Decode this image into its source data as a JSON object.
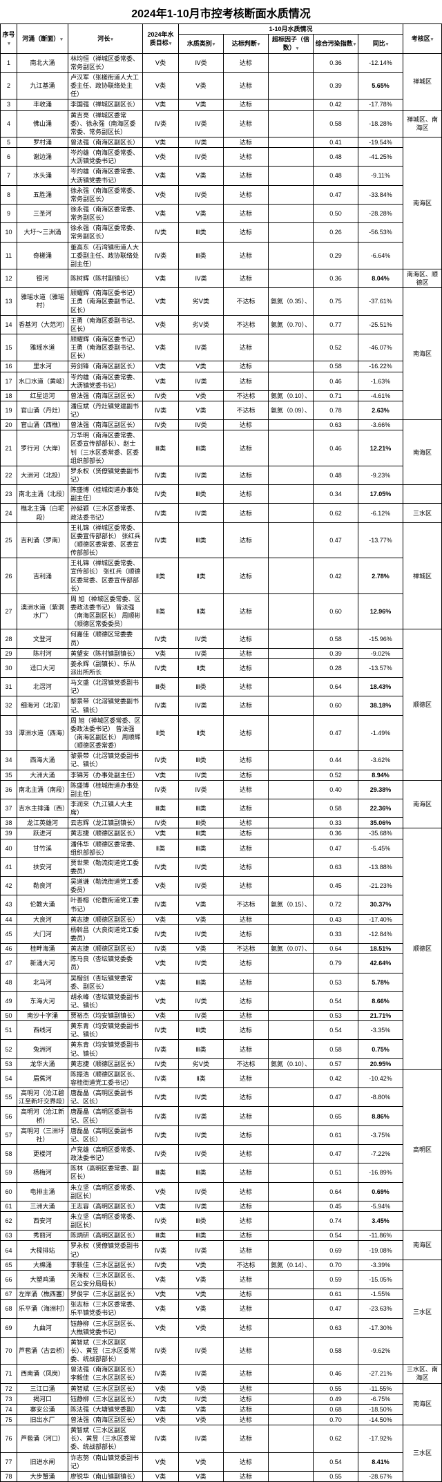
{
  "title": "2024年1-10月市控考核断面水质情况",
  "headers": {
    "no": "序号",
    "river": "河涌（断面）",
    "chief": "河长",
    "target": "2024年水质目标",
    "group": "1-10月水质情况",
    "cat": "水质类别",
    "reach": "达标判断",
    "exceed": "超标因子（倍数）",
    "index": "综合污染指数",
    "yoy": "同比",
    "zone": "考核区"
  },
  "rows": [
    {
      "no": "1",
      "river": "南北大涌",
      "chief": "林均恒（禅城区委常委、常务副区长）",
      "target": "Ⅴ类",
      "cat": "Ⅳ类",
      "reach": "达标",
      "exceed": "",
      "index": "0.36",
      "yoy": "-12.14%",
      "zone": "禅城区",
      "zspan": 3,
      "yb": false
    },
    {
      "no": "2",
      "river": "九江基涌",
      "chief": "卢汉军（张槎街道人大工委主任、政协联络处主任）",
      "target": "Ⅴ类",
      "cat": "Ⅴ类",
      "reach": "达标",
      "exceed": "",
      "index": "0.39",
      "yoy": "5.65%",
      "yb": true
    },
    {
      "no": "3",
      "river": "丰收涌",
      "chief": "李国强（禅城区副区长）",
      "target": "Ⅴ类",
      "cat": "Ⅴ类",
      "reach": "达标",
      "exceed": "",
      "index": "0.42",
      "yoy": "-17.78%",
      "yb": false
    },
    {
      "no": "4",
      "river": "佛山涌",
      "chief": "黄吉亮（禅城区委常委）、徐永强（南海区委常委、常务副区长）",
      "target": "Ⅳ类",
      "cat": "Ⅳ类",
      "reach": "达标",
      "exceed": "",
      "index": "0.58",
      "yoy": "-18.28%",
      "zone": "禅城区、南海区",
      "zspan": 1,
      "yb": false
    },
    {
      "no": "5",
      "river": "罗村涌",
      "chief": "曾法强（南海区副区长）",
      "target": "Ⅴ类",
      "cat": "Ⅳ类",
      "reach": "达标",
      "exceed": "",
      "index": "0.41",
      "yoy": "-19.54%",
      "zone": "南海区",
      "zspan": 7,
      "yb": false
    },
    {
      "no": "6",
      "river": "谢边涌",
      "chief": "岑灼雄（南海区委常委、大沥镇党委书记）",
      "target": "Ⅴ类",
      "cat": "Ⅳ类",
      "reach": "达标",
      "exceed": "",
      "index": "0.48",
      "yoy": "-41.25%",
      "yb": false
    },
    {
      "no": "7",
      "river": "水头涌",
      "chief": "岑灼雄（南海区委常委、大沥镇党委书记）",
      "target": "Ⅴ类",
      "cat": "Ⅴ类",
      "reach": "达标",
      "exceed": "",
      "index": "0.48",
      "yoy": "-9.11%",
      "yb": false
    },
    {
      "no": "8",
      "river": "五胜涌",
      "chief": "徐永强（南海区委常委、常务副区长）",
      "target": "Ⅴ类",
      "cat": "Ⅳ类",
      "reach": "达标",
      "exceed": "",
      "index": "0.47",
      "yoy": "-33.84%",
      "yb": false
    },
    {
      "no": "9",
      "river": "三圣河",
      "chief": "徐永强（南海区委常委、常务副区长）",
      "target": "Ⅴ类",
      "cat": "Ⅴ类",
      "reach": "达标",
      "exceed": "",
      "index": "0.50",
      "yoy": "-28.28%",
      "yb": false
    },
    {
      "no": "10",
      "river": "大圩～三洲涌",
      "chief": "徐永强（南海区委常委、常务副区长）",
      "target": "Ⅳ类",
      "cat": "Ⅲ类",
      "reach": "达标",
      "exceed": "",
      "index": "0.26",
      "yoy": "-56.53%",
      "yb": false
    },
    {
      "no": "11",
      "river": "奇槎涌",
      "chief": "董高东（石湾镇街道人大工委副主任、政协联络处副主任）",
      "target": "Ⅳ类",
      "cat": "Ⅲ类",
      "reach": "达标",
      "exceed": "",
      "index": "0.29",
      "yoy": "-6.64%",
      "yb": false
    },
    {
      "no": "12",
      "river": "银河",
      "chief": "陈树辉（陈村副镇长）",
      "target": "Ⅴ类",
      "cat": "Ⅳ类",
      "reach": "达标",
      "exceed": "",
      "index": "0.36",
      "yoy": "8.04%",
      "zone": "南海区、顺德区",
      "zspan": 1,
      "yb": true
    },
    {
      "no": "13",
      "river": "雅瑶水道（雅瑶村）",
      "chief": "顾耀辉（南海区委书记）\n王勇（南海区委副书记、区长）",
      "target": "Ⅴ类",
      "cat": "劣Ⅴ类",
      "reach": "不达标",
      "exceed": "氨氮（0.35）、",
      "index": "0.75",
      "yoy": "-37.61%",
      "zone": "南海区",
      "zspan": 7,
      "yb": false
    },
    {
      "no": "14",
      "river": "香基河（大范河）",
      "chief": "王勇（南海区委副书记、区长）",
      "target": "Ⅴ类",
      "cat": "劣Ⅴ类",
      "reach": "不达标",
      "exceed": "氨氮（0.70）、",
      "index": "0.77",
      "yoy": "-25.51%",
      "yb": false
    },
    {
      "no": "15",
      "river": "雅瑶水道",
      "chief": "顾耀辉（南海区委书记）\n王勇（南海区委副书记、区长）",
      "target": "Ⅴ类",
      "cat": "Ⅳ类",
      "reach": "达标",
      "exceed": "",
      "index": "0.52",
      "yoy": "-46.07%",
      "yb": false
    },
    {
      "no": "16",
      "river": "里水河",
      "chief": "劳剑锋（南海区副区长）",
      "target": "Ⅴ类",
      "cat": "Ⅴ类",
      "reach": "达标",
      "exceed": "",
      "index": "0.58",
      "yoy": "-16.22%",
      "yb": false
    },
    {
      "no": "17",
      "river": "水口水道（黄岐）",
      "chief": "岑灼雄（南海区委常委、大沥镇党委书记）",
      "target": "Ⅴ类",
      "cat": "Ⅳ类",
      "reach": "达标",
      "exceed": "",
      "index": "0.46",
      "yoy": "-1.63%",
      "yb": false
    },
    {
      "no": "18",
      "river": "红星运河",
      "chief": "曾法强（南海区副区长）",
      "target": "Ⅳ类",
      "cat": "Ⅴ类",
      "reach": "不达标",
      "exceed": "氨氮（0.10）、",
      "index": "0.71",
      "yoy": "-4.61%",
      "yb": false
    },
    {
      "no": "19",
      "river": "官山涌（丹灶）",
      "chief": "潘应斌（丹灶镇党建副书记）",
      "target": "Ⅳ类",
      "cat": "Ⅴ类",
      "reach": "不达标",
      "exceed": "氨氮（0.09）、",
      "index": "0.78",
      "yoy": "2.63%",
      "yb": true
    },
    {
      "no": "20",
      "river": "官山涌（西樵）",
      "chief": "曾法强（南海区副区长）",
      "target": "Ⅳ类",
      "cat": "Ⅳ类",
      "reach": "达标",
      "exceed": "",
      "index": "0.63",
      "yoy": "-3.66%",
      "zone": "南海区",
      "zspan": 3,
      "yb": false
    },
    {
      "no": "21",
      "river": "罗行河（大岸）",
      "chief": "万华明（南海区委常委、区委宣传部部长）、赵士钊（三水区委常委、区委组织部部长）",
      "target": "Ⅲ类",
      "cat": "Ⅲ类",
      "reach": "达标",
      "exceed": "",
      "index": "0.46",
      "yoy": "12.21%",
      "yb": true
    },
    {
      "no": "22",
      "river": "大洲河（北投）",
      "chief": "罗永权（贤僚镇党委副书记）",
      "target": "Ⅳ类",
      "cat": "Ⅳ类",
      "reach": "达标",
      "exceed": "",
      "index": "0.48",
      "yoy": "-9.23%",
      "yb": false
    },
    {
      "no": "23",
      "river": "南北主涌（北段）",
      "chief": "陈盛博（桂城街道办事处副主任）",
      "target": "Ⅳ类",
      "cat": "Ⅲ类",
      "reach": "达标",
      "exceed": "",
      "index": "0.34",
      "yoy": "17.05%",
      "zone": "",
      "zspan": 1,
      "yb": true
    },
    {
      "no": "24",
      "river": "樵北主涌（白坭段）",
      "chief": "孙延颖（三水区委常委、政法委书记）",
      "target": "Ⅳ类",
      "cat": "Ⅳ类",
      "reach": "达标",
      "exceed": "",
      "index": "0.62",
      "yoy": "-6.12%",
      "zone": "三水区",
      "zspan": 1,
      "yb": false
    },
    {
      "no": "25",
      "river": "吉利涌（罗南）",
      "chief": "王礼锦（禅城区委常委、区委宣传部部长）\n张红兵（顺德区委常委、区委宣传部部长）",
      "target": "Ⅳ类",
      "cat": "Ⅲ类",
      "reach": "达标",
      "exceed": "",
      "index": "0.47",
      "yoy": "-13.77%",
      "zone": "禅城区",
      "zspan": 3,
      "yb": false
    },
    {
      "no": "26",
      "river": "吉利涌",
      "chief": "王礼锦（禅城区委常委、宣传部长）\n张红兵（顺德区委常委、区委宣传部部长）",
      "target": "Ⅱ类",
      "cat": "Ⅱ类",
      "reach": "达标",
      "exceed": "",
      "index": "0.42",
      "yoy": "2.78%",
      "yb": true
    },
    {
      "no": "27",
      "river": "澳洲水道（紫洞水厂）",
      "chief": "周 旭（禅城区委常委、区委政法委书记）\n曾法强（南海区副区长）\n周顺彬（顺德区常委委员）",
      "target": "Ⅱ类",
      "cat": "Ⅱ类",
      "reach": "达标",
      "exceed": "",
      "index": "0.60",
      "yoy": "12.96%",
      "yb": true
    },
    {
      "no": "28",
      "river": "文登河",
      "chief": "何嘉佳（顺德区常委委员）",
      "target": "Ⅳ类",
      "cat": "Ⅳ类",
      "reach": "达标",
      "exceed": "",
      "index": "0.58",
      "yoy": "-15.96%",
      "zone": "顺德区",
      "zspan": 8,
      "yb": false
    },
    {
      "no": "29",
      "river": "陈村河",
      "chief": "黄望安（陈村镇副镇长）",
      "target": "Ⅴ类",
      "cat": "Ⅳ类",
      "reach": "达标",
      "exceed": "",
      "index": "0.39",
      "yoy": "-9.02%",
      "yb": false
    },
    {
      "no": "30",
      "river": "迳口大河",
      "chief": "姜永辉（副镇长）、乐从派出所所长",
      "target": "Ⅳ类",
      "cat": "Ⅱ类",
      "reach": "达标",
      "exceed": "",
      "index": "0.28",
      "yoy": "-13.57%",
      "yb": false
    },
    {
      "no": "31",
      "river": "北滘河",
      "chief": "马文盛（北滘镇党委副书记）",
      "target": "Ⅲ类",
      "cat": "Ⅲ类",
      "reach": "达标",
      "exceed": "",
      "index": "0.64",
      "yoy": "18.43%",
      "yb": true
    },
    {
      "no": "32",
      "river": "细海河（北滘）",
      "chief": "黎景带（北滘镇党委副书记、镇长）",
      "target": "Ⅳ类",
      "cat": "Ⅳ类",
      "reach": "达标",
      "exceed": "",
      "index": "0.60",
      "yoy": "38.18%",
      "yb": true
    },
    {
      "no": "33",
      "river": "潭洲水道（西海）",
      "chief": "周 旭（禅城区委常委、区委政法委书记）\n曾法强（南海区副区长）\n周顺辉（顺德区委常委）",
      "target": "Ⅱ类",
      "cat": "Ⅱ类",
      "reach": "达标",
      "exceed": "",
      "index": "0.47",
      "yoy": "-1.49%",
      "yb": false
    },
    {
      "no": "34",
      "river": "西海大涌",
      "chief": "黎景带（北滘镇党委副书记、镇长）",
      "target": "Ⅳ类",
      "cat": "Ⅲ类",
      "reach": "达标",
      "exceed": "",
      "index": "0.44",
      "yoy": "-3.62%",
      "yb": false
    },
    {
      "no": "35",
      "river": "大洲大涌",
      "chief": "李锦芳（办事处副主任）",
      "target": "Ⅴ类",
      "cat": "Ⅳ类",
      "reach": "达标",
      "exceed": "",
      "index": "0.52",
      "yoy": "8.94%",
      "yb": true
    },
    {
      "no": "36",
      "river": "南北主涌（南段）",
      "chief": "陈盛博（桂城街道办事处副主任）",
      "target": "Ⅳ类",
      "cat": "Ⅳ类",
      "reach": "达标",
      "exceed": "",
      "index": "0.40",
      "yoy": "29.38%",
      "zone": "南海区",
      "zspan": 3,
      "yb": true
    },
    {
      "no": "37",
      "river": "吉水主排涌（西）",
      "chief": "李润来（九江镇人大主席）",
      "target": "Ⅲ类",
      "cat": "Ⅲ类",
      "reach": "达标",
      "exceed": "",
      "index": "0.58",
      "yoy": "22.36%",
      "yb": true
    },
    {
      "no": "38",
      "river": "龙江英雄河",
      "chief": "云志辉（龙江镇副镇长）",
      "target": "Ⅳ类",
      "cat": "Ⅲ类",
      "reach": "达标",
      "exceed": "",
      "index": "0.33",
      "yoy": "35.06%",
      "yb": true
    },
    {
      "no": "39",
      "river": "跃进河",
      "chief": "黄志捷（顺德区副区长）",
      "target": "Ⅴ类",
      "cat": "Ⅲ类",
      "reach": "达标",
      "exceed": "",
      "index": "0.36",
      "yoy": "-35.68%",
      "zone": "顺德区",
      "zspan": 15,
      "yb": false
    },
    {
      "no": "40",
      "river": "甘竹溪",
      "chief": "潘伟华（顺德区委常委、组织部部长）",
      "target": "Ⅱ类",
      "cat": "Ⅲ类",
      "reach": "达标",
      "exceed": "",
      "index": "0.47",
      "yoy": "-5.45%",
      "yb": false
    },
    {
      "no": "41",
      "river": "扶安河",
      "chief": "贾世荣（勒流街道党工委委员）",
      "target": "Ⅳ类",
      "cat": "Ⅳ类",
      "reach": "达标",
      "exceed": "",
      "index": "0.63",
      "yoy": "-13.88%",
      "yb": false
    },
    {
      "no": "42",
      "river": "勒良河",
      "chief": "吴道谦（勒流街道党工委委员）",
      "target": "Ⅴ类",
      "cat": "Ⅳ类",
      "reach": "达标",
      "exceed": "",
      "index": "0.45",
      "yoy": "-21.23%",
      "yb": false
    },
    {
      "no": "43",
      "river": "伦教大涌",
      "chief": "叶善榕（伦教街道党工委书记）",
      "target": "Ⅳ类",
      "cat": "Ⅴ类",
      "reach": "不达标",
      "exceed": "氨氮（0.15）、",
      "index": "0.72",
      "yoy": "30.37%",
      "yb": true
    },
    {
      "no": "44",
      "river": "大良河",
      "chief": "黄志捷（顺德区副区长）",
      "target": "Ⅴ类",
      "cat": "Ⅴ类",
      "reach": "达标",
      "exceed": "",
      "index": "0.43",
      "yoy": "-17.40%",
      "yb": false
    },
    {
      "no": "45",
      "river": "大门河",
      "chief": "杨斡昌（大良街道党工委委员）",
      "target": "Ⅳ类",
      "cat": "Ⅳ类",
      "reach": "达标",
      "exceed": "",
      "index": "0.33",
      "yoy": "-12.84%",
      "yb": false
    },
    {
      "no": "46",
      "river": "桂畔海涌",
      "chief": "黄志捷（顺德区副区长）",
      "target": "Ⅳ类",
      "cat": "Ⅴ类",
      "reach": "不达标",
      "exceed": "氨氮（0.07）、",
      "index": "0.64",
      "yoy": "18.51%",
      "yb": true
    },
    {
      "no": "47",
      "river": "新涌大河",
      "chief": "陈马良（杏坛镇党委委员）",
      "target": "Ⅴ类",
      "cat": "Ⅳ类",
      "reach": "达标",
      "exceed": "",
      "index": "0.79",
      "yoy": "42.64%",
      "yb": true
    },
    {
      "no": "48",
      "river": "北马河",
      "chief": "吴楷剑（杏坛镇党委常委、副区长）",
      "target": "Ⅴ类",
      "cat": "Ⅲ类",
      "reach": "达标",
      "exceed": "",
      "index": "0.53",
      "yoy": "5.78%",
      "yb": true
    },
    {
      "no": "49",
      "river": "东海大河",
      "chief": "胡永峰（杏坛镇党委副书记、镇长）",
      "target": "Ⅴ类",
      "cat": "Ⅳ类",
      "reach": "达标",
      "exceed": "",
      "index": "0.54",
      "yoy": "8.66%",
      "yb": true
    },
    {
      "no": "50",
      "river": "南沙十字涌",
      "chief": "贾裕杰（均安镇副镇长）",
      "target": "Ⅴ类",
      "cat": "Ⅳ类",
      "reach": "达标",
      "exceed": "",
      "index": "0.53",
      "yoy": "21.71%",
      "yb": true
    },
    {
      "no": "51",
      "river": "西线河",
      "chief": "黄东青（均安镇党委副书记、镇长）",
      "target": "Ⅳ类",
      "cat": "Ⅲ类",
      "reach": "达标",
      "exceed": "",
      "index": "0.54",
      "yoy": "-3.35%",
      "yb": false
    },
    {
      "no": "52",
      "river": "兔洲河",
      "chief": "黄东青（均安镇党委副书记、镇长）",
      "target": "Ⅳ类",
      "cat": "Ⅲ类",
      "reach": "达标",
      "exceed": "",
      "index": "0.58",
      "yoy": "0.75%",
      "yb": true
    },
    {
      "no": "53",
      "river": "龙华大涌",
      "chief": "黄志捷（顺德区副区长）",
      "target": "Ⅳ类",
      "cat": "劣Ⅴ类",
      "reach": "不达标",
      "exceed": "氨氮（0.10）、",
      "index": "0.57",
      "yoy": "20.95%",
      "yb": true
    },
    {
      "no": "54",
      "river": "眉蕉河",
      "chief": "陈振浩（顺德区副区长、容桂街道党工委书记）",
      "target": "Ⅳ类",
      "cat": "Ⅱ类",
      "reach": "达标",
      "exceed": "",
      "index": "0.42",
      "yoy": "-10.42%",
      "zone": "高明区",
      "zspan": 9,
      "yb": false
    },
    {
      "no": "55",
      "river": "高明河（沧江碧江至新圩交界段）",
      "chief": "唐磊晶（高明区委副书记、区长）",
      "target": "Ⅳ类",
      "cat": "Ⅳ类",
      "reach": "达标",
      "exceed": "",
      "index": "0.47",
      "yoy": "-8.80%",
      "yb": false
    },
    {
      "no": "56",
      "river": "高明河（沧江新桥）",
      "chief": "唐磊晶（高明区委副书记、区长）",
      "target": "Ⅳ类",
      "cat": "Ⅳ类",
      "reach": "达标",
      "exceed": "",
      "index": "0.65",
      "yoy": "8.86%",
      "yb": true
    },
    {
      "no": "57",
      "river": "高明河（三洲圩社）",
      "chief": "唐磊晶（高明区委副书记、区长）",
      "target": "Ⅳ类",
      "cat": "Ⅳ类",
      "reach": "达标",
      "exceed": "",
      "index": "0.61",
      "yoy": "-3.75%",
      "yb": false
    },
    {
      "no": "58",
      "river": "更楼河",
      "chief": "卢竞雄（高明区委常委、政法委书记）",
      "target": "Ⅳ类",
      "cat": "Ⅳ类",
      "reach": "达标",
      "exceed": "",
      "index": "0.47",
      "yoy": "-7.22%",
      "yb": false
    },
    {
      "no": "59",
      "river": "杨梅河",
      "chief": "陈林（高明区委常委、副区长）",
      "target": "Ⅲ类",
      "cat": "Ⅲ类",
      "reach": "达标",
      "exceed": "",
      "index": "0.51",
      "yoy": "-16.89%",
      "yb": false
    },
    {
      "no": "60",
      "river": "电排主涌",
      "chief": "朱立坚（高明区委常委、副区长）",
      "target": "Ⅴ类",
      "cat": "Ⅳ类",
      "reach": "达标",
      "exceed": "",
      "index": "0.64",
      "yoy": "0.69%",
      "yb": true
    },
    {
      "no": "61",
      "river": "三洲大涌",
      "chief": "王志容（高明区副区长）",
      "target": "Ⅴ类",
      "cat": "Ⅳ类",
      "reach": "达标",
      "exceed": "",
      "index": "0.45",
      "yoy": "-5.94%",
      "yb": false
    },
    {
      "no": "62",
      "river": "西安河",
      "chief": "朱立坚（高明区委常委、副区长）",
      "target": "Ⅳ类",
      "cat": "Ⅲ类",
      "reach": "达标",
      "exceed": "",
      "index": "0.74",
      "yoy": "3.45%",
      "yb": true
    },
    {
      "no": "63",
      "river": "秀丽河",
      "chief": "陈炳研（高明区副区长）",
      "target": "Ⅲ类",
      "cat": "Ⅲ类",
      "reach": "达标",
      "exceed": "",
      "index": "0.54",
      "yoy": "-11.86%",
      "zone": "南海区",
      "zspan": 2,
      "yb": false
    },
    {
      "no": "64",
      "river": "大樑排站",
      "chief": "罗永权（贤僚镇党委副书记）",
      "target": "Ⅳ类",
      "cat": "Ⅳ类",
      "reach": "达标",
      "exceed": "",
      "index": "0.69",
      "yoy": "-19.08%",
      "yb": false
    },
    {
      "no": "65",
      "river": "大棉涌",
      "chief": "李毅佳（三水区副区长）",
      "target": "Ⅳ类",
      "cat": "Ⅴ类",
      "reach": "不达标",
      "exceed": "氨氮（0.14）、",
      "index": "0.70",
      "yoy": "-3.39%",
      "zone": "三水区",
      "zspan": 6,
      "yb": false
    },
    {
      "no": "66",
      "river": "大塑鸡涌",
      "chief": "关海权（三水区副区长、区公安分局局长）",
      "target": "Ⅴ类",
      "cat": "Ⅴ类",
      "reach": "达标",
      "exceed": "",
      "index": "0.59",
      "yoy": "-15.05%",
      "yb": false
    },
    {
      "no": "67",
      "river": "左岸涌（樵西塞）",
      "chief": "罗俊宇（三水区副区长）",
      "target": "Ⅴ类",
      "cat": "Ⅴ类",
      "reach": "达标",
      "exceed": "",
      "index": "0.61",
      "yoy": "-1.55%",
      "yb": false
    },
    {
      "no": "68",
      "river": "乐平涌（海洲村）",
      "chief": "张志标（三水区委常委、乐平镇党委书记）",
      "target": "Ⅴ类",
      "cat": "Ⅴ类",
      "reach": "达标",
      "exceed": "",
      "index": "0.47",
      "yoy": "-23.63%",
      "yb": false
    },
    {
      "no": "69",
      "river": "九曲河",
      "chief": "钰静柳（三水区副区长、大樵镇党委书记）",
      "target": "Ⅴ类",
      "cat": "Ⅴ类",
      "reach": "达标",
      "exceed": "",
      "index": "0.63",
      "yoy": "-17.30%",
      "yb": false
    },
    {
      "no": "70",
      "river": "芦苞涌（古云桥）",
      "chief": "黄智斌（三水区副区长）、黄昱（三水区委常委、统战部部长）",
      "target": "Ⅳ类",
      "cat": "Ⅳ类",
      "reach": "达标",
      "exceed": "",
      "index": "0.58",
      "yoy": "-9.62%",
      "yb": false
    },
    {
      "no": "71",
      "river": "西南涌（凤岗）",
      "chief": "曾法强（南海区副区长）\n李毅佳（三水区副区长）",
      "target": "Ⅳ类",
      "cat": "Ⅳ类",
      "reach": "达标",
      "exceed": "",
      "index": "0.46",
      "yoy": "-27.21%",
      "zone": "三水区、南海区",
      "zspan": 1,
      "yb": false
    },
    {
      "no": "72",
      "river": "三江口涌",
      "chief": "黄智斌（三水区副区长）",
      "target": "Ⅴ类",
      "cat": "Ⅴ类",
      "reach": "达标",
      "exceed": "",
      "index": "0.55",
      "yoy": "-11.55%",
      "zone": "南海区",
      "zspan": 4,
      "yb": false
    },
    {
      "no": "73",
      "river": "揭河口",
      "chief": "钰静柳（三水区副区长）",
      "target": "Ⅳ类",
      "cat": "Ⅳ类",
      "reach": "达标",
      "exceed": "",
      "index": "0.49",
      "yoy": "-6.75%",
      "yb": false
    },
    {
      "no": "74",
      "river": "寨安公涌",
      "chief": "陈法强（大塘镇党委副）",
      "target": "Ⅴ类",
      "cat": "Ⅴ类",
      "reach": "达标",
      "exceed": "",
      "index": "0.68",
      "yoy": "-18.50%",
      "yb": false
    },
    {
      "no": "75",
      "river": "旧出水厂",
      "chief": "曾法强（南海区副区长）",
      "target": "Ⅴ类",
      "cat": "Ⅴ类",
      "reach": "达标",
      "exceed": "",
      "index": "0.70",
      "yoy": "-14.50%",
      "yb": false
    },
    {
      "no": "76",
      "river": "芦苞涌（河口）",
      "chief": "黄智斌（三水区副区长）、黄昱（三水区委常委、统战部部长）",
      "target": "Ⅳ类",
      "cat": "Ⅳ类",
      "reach": "达标",
      "exceed": "",
      "index": "0.62",
      "yoy": "-17.92%",
      "zone": "三水区",
      "zspan": 3,
      "yb": false
    },
    {
      "no": "77",
      "river": "旧进水闸",
      "chief": "许志努（南山镇党委副书记）",
      "target": "Ⅴ类",
      "cat": "Ⅴ类",
      "reach": "达标",
      "exceed": "",
      "index": "0.54",
      "yoy": "8.41%",
      "yb": true
    },
    {
      "no": "78",
      "river": "大步蟹涌",
      "chief": "廖锐华（南山镇副镇长）",
      "target": "Ⅴ类",
      "cat": "Ⅴ类",
      "reach": "达标",
      "exceed": "",
      "index": "0.55",
      "yoy": "-28.67%",
      "yb": false
    }
  ]
}
